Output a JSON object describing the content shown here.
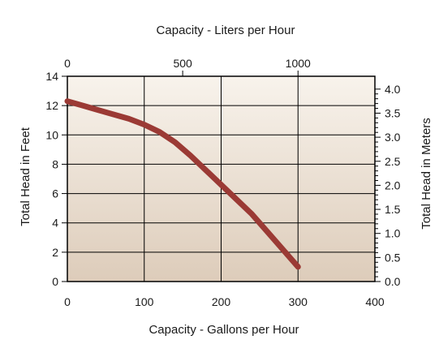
{
  "chart_data": {
    "type": "line",
    "title": "Capacity - Liters per Hour",
    "xlabel": "Capacity - Gallons per Hour",
    "ylabel": "Total Head in Feet",
    "ylabel_right": "Total Head in Meters",
    "xlim": [
      0,
      400
    ],
    "ylim": [
      0,
      14
    ],
    "x_ticks": [
      "0",
      "100",
      "200",
      "300",
      "400"
    ],
    "y_ticks": [
      "0",
      "2",
      "4",
      "6",
      "8",
      "10",
      "12",
      "14"
    ],
    "x_top_ticks": [
      {
        "label": "0",
        "gph": 0
      },
      {
        "label": "500",
        "gph": 150
      },
      {
        "label": "1000",
        "gph": 300
      }
    ],
    "y_right_ticks": [
      "0.0",
      "0.5",
      "1.0",
      "1.5",
      "2.0",
      "2.5",
      "3.0",
      "3.5",
      "4.0"
    ],
    "meters_to_feet": 3.281,
    "grid": true,
    "colors": {
      "line": "#9b3a35",
      "bg_top": "#f8f3ec",
      "bg_bottom": "#ddccba",
      "grid": "#000000"
    },
    "series": [
      {
        "x": [
          0,
          20,
          40,
          60,
          80,
          100,
          120,
          140,
          160,
          180,
          200,
          220,
          240,
          260,
          280,
          300
        ],
        "values": [
          12.3,
          12.0,
          11.7,
          11.4,
          11.1,
          10.7,
          10.2,
          9.5,
          8.6,
          7.6,
          6.6,
          5.6,
          4.6,
          3.4,
          2.2,
          1.0
        ]
      }
    ]
  }
}
